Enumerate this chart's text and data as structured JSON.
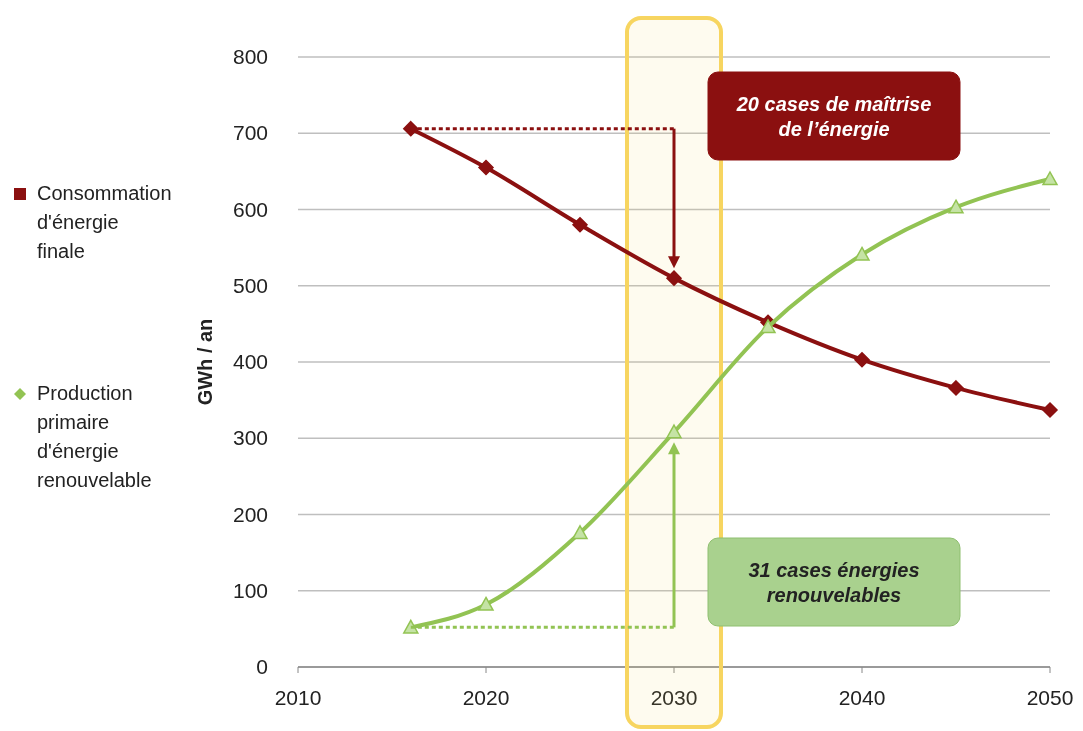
{
  "chart_data": {
    "type": "line",
    "ylabel": "GWh / an",
    "x": [
      2016,
      2020,
      2025,
      2030,
      2035,
      2040,
      2045,
      2050
    ],
    "series": [
      {
        "name": "Consommation d'énergie finale",
        "color": "#8b1010",
        "marker": "diamond",
        "values": [
          706,
          655,
          580,
          510,
          452,
          403,
          366,
          337
        ]
      },
      {
        "name": "Production primaire d'énergie renouvelable",
        "color": "#92c353",
        "marker": "triangle",
        "values": [
          52,
          82,
          176,
          308,
          446,
          541,
          603,
          640
        ]
      }
    ],
    "xlim": [
      2010,
      2050
    ],
    "xticks": [
      2010,
      2020,
      2030,
      2040,
      2050
    ],
    "ylim": [
      0,
      800
    ],
    "yticks": [
      0,
      100,
      200,
      300,
      400,
      500,
      600,
      700,
      800
    ],
    "grid": "y",
    "legend": "left",
    "bands": [
      {
        "axis": "x",
        "from": 2027.5,
        "to": 2032.5,
        "color": "#f7d560"
      }
    ],
    "annotations": [
      "20 cases de maîtrise de l’énergie",
      "31 cases énergies renouvelables"
    ]
  }
}
